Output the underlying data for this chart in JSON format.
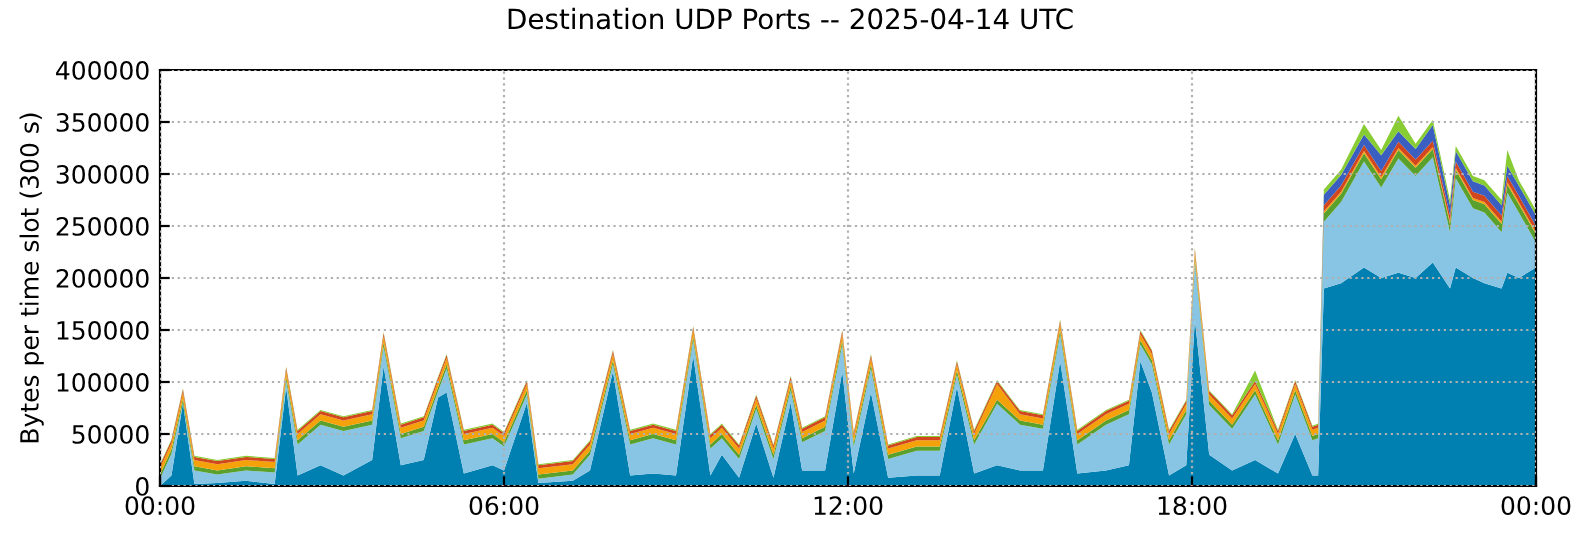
{
  "chart_data": {
    "type": "area",
    "stacked": true,
    "title": "Destination UDP Ports -- 2025-04-14 UTC",
    "ylabel": "Bytes per time slot (300 s)",
    "x": [
      0,
      0.2,
      0.4,
      0.6,
      1.0,
      1.5,
      2.0,
      2.2,
      2.4,
      2.8,
      3.2,
      3.7,
      3.9,
      4.2,
      4.6,
      4.85,
      5.0,
      5.3,
      5.8,
      6.0,
      6.4,
      6.6,
      7.2,
      7.5,
      7.9,
      8.2,
      8.6,
      9.0,
      9.3,
      9.6,
      9.8,
      10.1,
      10.4,
      10.7,
      11.0,
      11.2,
      11.6,
      11.9,
      12.1,
      12.4,
      12.7,
      13.2,
      13.6,
      13.9,
      14.2,
      14.6,
      15.0,
      15.4,
      15.7,
      16.0,
      16.5,
      16.9,
      17.1,
      17.3,
      17.6,
      17.9,
      18.05,
      18.3,
      18.7,
      19.1,
      19.5,
      19.8,
      20.1,
      20.2,
      20.3,
      20.6,
      21.0,
      21.3,
      21.6,
      21.9,
      22.2,
      22.5,
      22.6,
      22.9,
      23.1,
      23.4,
      23.5,
      23.7,
      24
    ],
    "series": [
      {
        "color": "#0080b0",
        "values": [
          0,
          10000,
          80000,
          2000,
          3000,
          5000,
          2000,
          95000,
          10000,
          20000,
          10000,
          25000,
          115000,
          20000,
          25000,
          85000,
          90000,
          12000,
          20000,
          15000,
          80000,
          3000,
          5000,
          15000,
          110000,
          10000,
          12000,
          10000,
          125000,
          10000,
          30000,
          8000,
          60000,
          8000,
          80000,
          15000,
          15000,
          110000,
          12000,
          90000,
          8000,
          10000,
          10000,
          95000,
          12000,
          20000,
          15000,
          15000,
          120000,
          12000,
          15000,
          20000,
          120000,
          90000,
          10000,
          20000,
          160000,
          30000,
          15000,
          25000,
          12000,
          50000,
          10000,
          10000,
          190000,
          195000,
          210000,
          200000,
          205000,
          200000,
          215000,
          190000,
          210000,
          200000,
          195000,
          190000,
          205000,
          200000,
          210000
        ]
      },
      {
        "color": "#88c4e4",
        "values": [
          7000,
          21000,
          0,
          13000,
          8000,
          10000,
          11000,
          6000,
          30000,
          39000,
          43000,
          34000,
          19000,
          26000,
          28000,
          6000,
          23000,
          28000,
          26000,
          23000,
          8000,
          4000,
          6000,
          15000,
          7000,
          30000,
          34000,
          30000,
          15000,
          26000,
          16000,
          18000,
          14000,
          18000,
          12000,
          27000,
          38000,
          26000,
          26000,
          23000,
          18000,
          24000,
          24000,
          12000,
          28000,
          59000,
          44000,
          40000,
          26000,
          28000,
          44000,
          49000,
          16000,
          27000,
          30000,
          49000,
          55000,
          48000,
          40000,
          63000,
          28000,
          38000,
          34000,
          36000,
          64000,
          78000,
          102000,
          87000,
          110000,
          98000,
          101000,
          54000,
          86000,
          67000,
          68000,
          54000,
          77000,
          63000,
          24000
        ]
      },
      {
        "color": "#5aa02c",
        "values": [
          4000,
          4000,
          4000,
          4000,
          4000,
          4000,
          4000,
          4000,
          4000,
          4000,
          4000,
          4000,
          4000,
          4000,
          4000,
          4000,
          4000,
          4000,
          4000,
          4000,
          4000,
          4000,
          4000,
          4000,
          4000,
          4000,
          4000,
          4000,
          4000,
          4000,
          4000,
          4000,
          4000,
          4000,
          4000,
          4000,
          4000,
          4000,
          4000,
          4000,
          4000,
          4000,
          4000,
          4000,
          4000,
          4000,
          4000,
          4000,
          4000,
          4000,
          4000,
          4000,
          4000,
          4000,
          4000,
          4000,
          4000,
          4000,
          4000,
          4000,
          4000,
          4000,
          4000,
          4000,
          8000,
          8000,
          8000,
          8000,
          8000,
          8000,
          8000,
          8000,
          8000,
          8000,
          8000,
          8000,
          8000,
          8000,
          8000
        ]
      },
      {
        "color": "#f5a20a",
        "values": [
          6000,
          6000,
          6000,
          6000,
          6000,
          6000,
          6000,
          6000,
          6000,
          6000,
          6000,
          6000,
          6000,
          6000,
          6000,
          6000,
          6000,
          6000,
          6000,
          6000,
          6000,
          6000,
          6000,
          6000,
          6000,
          6000,
          6000,
          6000,
          6000,
          6000,
          6000,
          6000,
          6000,
          6000,
          6000,
          6000,
          6000,
          6000,
          6000,
          6000,
          6000,
          6000,
          6000,
          6000,
          6000,
          15000,
          6000,
          6000,
          6000,
          6000,
          6000,
          6000,
          6000,
          6000,
          6000,
          6000,
          6000,
          6000,
          6000,
          6000,
          6000,
          6000,
          6000,
          6000,
          2000,
          2000,
          2000,
          2000,
          2000,
          2000,
          2000,
          2000,
          2000,
          2000,
          2000,
          2000,
          2000,
          2000,
          2000
        ]
      },
      {
        "color": "#d2461e",
        "values": [
          3000,
          3000,
          3000,
          3000,
          3000,
          3000,
          3000,
          3000,
          3000,
          3000,
          3000,
          3000,
          3000,
          3000,
          3000,
          3000,
          3000,
          3000,
          3000,
          3000,
          3000,
          3000,
          3000,
          3000,
          3000,
          3000,
          3000,
          3000,
          3000,
          3000,
          3000,
          3000,
          3000,
          3000,
          3000,
          3000,
          3000,
          3000,
          3000,
          3000,
          3000,
          3000,
          3000,
          3000,
          3000,
          3000,
          3000,
          3000,
          3000,
          3000,
          3000,
          3000,
          3000,
          3000,
          3000,
          3000,
          3000,
          3000,
          3000,
          3000,
          3000,
          3000,
          3000,
          3000,
          6000,
          6000,
          6000,
          6000,
          6000,
          6000,
          6000,
          6000,
          6000,
          6000,
          6000,
          6000,
          6000,
          6000,
          6000
        ]
      },
      {
        "color": "#3b5fc0",
        "values": [
          0,
          0,
          0,
          0,
          0,
          0,
          0,
          0,
          0,
          0,
          0,
          0,
          0,
          0,
          0,
          0,
          0,
          0,
          0,
          0,
          0,
          0,
          0,
          0,
          0,
          0,
          0,
          0,
          0,
          0,
          0,
          0,
          0,
          0,
          0,
          0,
          0,
          0,
          0,
          0,
          0,
          0,
          0,
          0,
          0,
          0,
          0,
          0,
          0,
          0,
          0,
          0,
          0,
          0,
          0,
          0,
          0,
          0,
          0,
          0,
          0,
          0,
          0,
          0,
          10000,
          10000,
          10000,
          15000,
          10000,
          10000,
          15000,
          10000,
          10000,
          10000,
          10000,
          10000,
          10000,
          10000,
          10000
        ]
      },
      {
        "color": "#88cc33",
        "values": [
          1000,
          1000,
          1000,
          1000,
          1000,
          1000,
          1000,
          1000,
          1000,
          1000,
          1000,
          1000,
          1000,
          1000,
          1000,
          1000,
          1000,
          1000,
          1000,
          1000,
          1000,
          1000,
          1000,
          1000,
          1000,
          1000,
          1000,
          1000,
          1000,
          1000,
          1000,
          1000,
          1000,
          1000,
          1000,
          1000,
          1000,
          1000,
          1000,
          1000,
          1000,
          1000,
          1000,
          1000,
          1000,
          1000,
          1000,
          1000,
          1000,
          1000,
          1000,
          1000,
          1000,
          1000,
          1000,
          1000,
          1000,
          1000,
          1000,
          10000,
          1000,
          1000,
          1000,
          1000,
          5000,
          5000,
          10000,
          5000,
          15000,
          5000,
          5000,
          5000,
          5000,
          5000,
          5000,
          5000,
          15000,
          5000,
          5000
        ]
      }
    ],
    "xlim": [
      0,
      24
    ],
    "xticks": [
      {
        "value": 0,
        "label": "00:00"
      },
      {
        "value": 6,
        "label": "06:00"
      },
      {
        "value": 12,
        "label": "12:00"
      },
      {
        "value": 18,
        "label": "18:00"
      },
      {
        "value": 24,
        "label": "00:00"
      }
    ],
    "ylim": [
      0,
      400000
    ],
    "yticks": [
      0,
      50000,
      100000,
      150000,
      200000,
      250000,
      300000,
      350000,
      400000
    ],
    "grid": true,
    "line_style": "dotted"
  }
}
